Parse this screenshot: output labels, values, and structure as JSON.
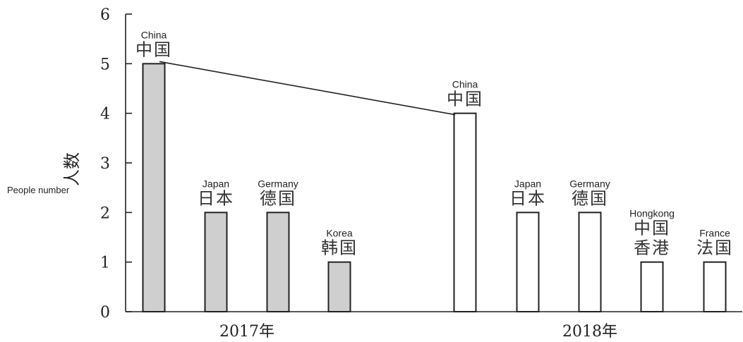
{
  "chart_data": {
    "type": "bar",
    "ylabel": "人数",
    "ylabel_en": "People number",
    "ylim": [
      0,
      6
    ],
    "yticks": [
      "0",
      "1",
      "2",
      "3",
      "4",
      "5",
      "6"
    ],
    "groups": [
      {
        "label": "2017年",
        "fill": "#cfcfcf",
        "bars": [
          {
            "en": "China",
            "zh": [
              "中国"
            ],
            "value": 5
          },
          {
            "en": "Japan",
            "zh": [
              "日本"
            ],
            "value": 2
          },
          {
            "en": "Germany",
            "zh": [
              "德国"
            ],
            "value": 2
          },
          {
            "en": "Korea",
            "zh": [
              "韩国"
            ],
            "value": 1
          }
        ]
      },
      {
        "label": "2018年",
        "fill": "#ffffff",
        "bars": [
          {
            "en": "China",
            "zh": [
              "中国"
            ],
            "value": 4
          },
          {
            "en": "Japan",
            "zh": [
              "日本"
            ],
            "value": 2
          },
          {
            "en": "Germany",
            "zh": [
              "德国"
            ],
            "value": 2
          },
          {
            "en": "Hongkong",
            "zh": [
              "中国",
              "香港"
            ],
            "value": 1
          },
          {
            "en": "France",
            "zh": [
              "法国"
            ],
            "value": 1
          }
        ]
      }
    ],
    "connector": {
      "from": "2017年 China",
      "to": "2018年 China"
    }
  }
}
